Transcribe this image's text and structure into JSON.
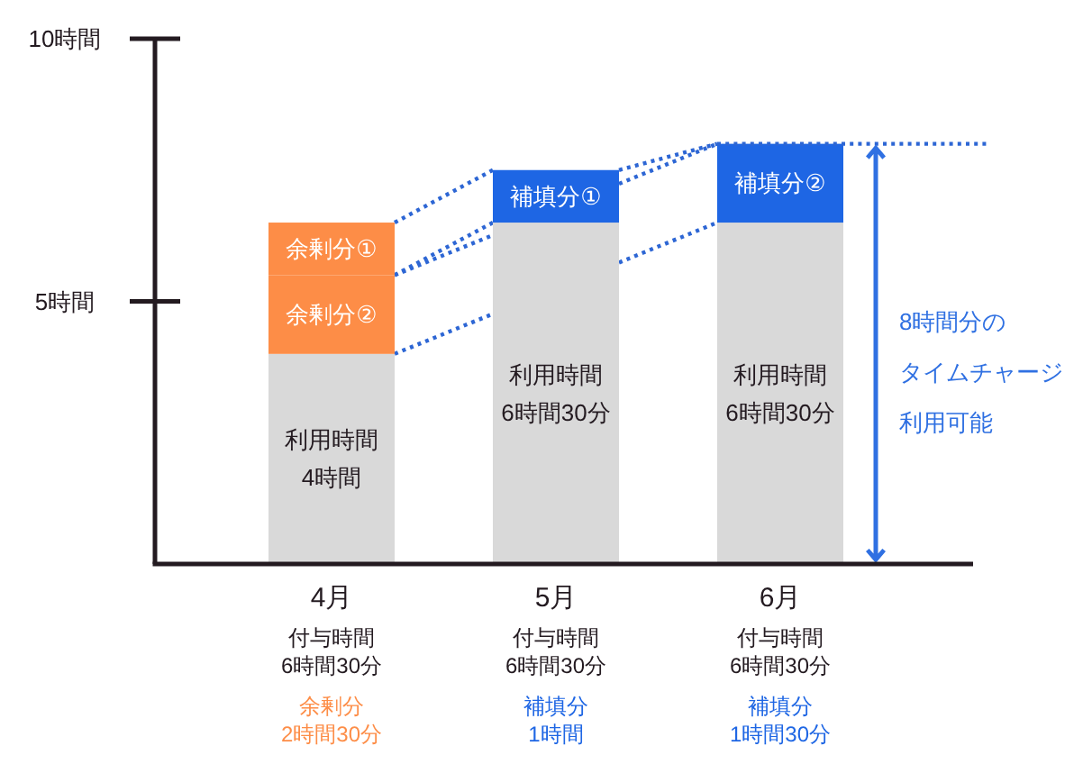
{
  "chart_data": {
    "type": "bar",
    "stacked": true,
    "categories": [
      "4月",
      "5月",
      "6月"
    ],
    "ylim": [
      0,
      10
    ],
    "yticks": [
      {
        "value": 5,
        "label": "5時間"
      },
      {
        "value": 10,
        "label": "10時間"
      }
    ],
    "series": [
      {
        "name": "利用時間",
        "color": "#d9d9d9",
        "values": [
          4,
          6.5,
          6.5
        ],
        "value_labels": [
          "4時間",
          "6時間30分",
          "6時間30分"
        ]
      },
      {
        "name": "余剰分②",
        "color": "#fd8d47",
        "values": [
          1.5,
          null,
          null
        ]
      },
      {
        "name": "余剰分①",
        "color": "#fd8d47",
        "values": [
          1,
          null,
          null
        ]
      },
      {
        "name": "補填分①",
        "color": "#1e66e4",
        "values": [
          null,
          1,
          null
        ]
      },
      {
        "name": "補填分②",
        "color": "#1e66e4",
        "values": [
          null,
          null,
          1.5
        ]
      }
    ],
    "ref_lines": [
      {
        "axis": "y",
        "value": 8,
        "color": "#2d66d4",
        "line_style": "dotted"
      }
    ],
    "annotations": [
      "8時間分のタイムチャージ利用可能",
      "付与時間\n6時間30分",
      "余剰分\n2時間30分",
      "付与時間\n6時間30分",
      "補填分\n1時間",
      "付与時間\n6時間30分",
      "補填分\n1時間30分"
    ]
  }
}
